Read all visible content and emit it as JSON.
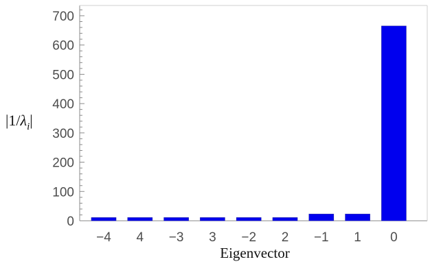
{
  "chart_data": {
    "type": "bar",
    "title": "",
    "xlabel": "Eigenvector",
    "ylabel": "|1/λi|",
    "ylabel_parts": {
      "open": "|1/",
      "symbol": "λ",
      "subscript": "i",
      "close": "|"
    },
    "categories": [
      "−4",
      "4",
      "−3",
      "3",
      "−2",
      "2",
      "−1",
      "1",
      "0"
    ],
    "values": [
      11,
      11,
      11,
      11,
      11,
      11,
      23,
      23,
      665
    ],
    "ylim": [
      0,
      735
    ],
    "yticks": [
      0,
      100,
      200,
      300,
      400,
      500,
      600,
      700
    ],
    "grid": false,
    "bar_color": "#0000ee",
    "axis_color": "#8a8a8a"
  }
}
